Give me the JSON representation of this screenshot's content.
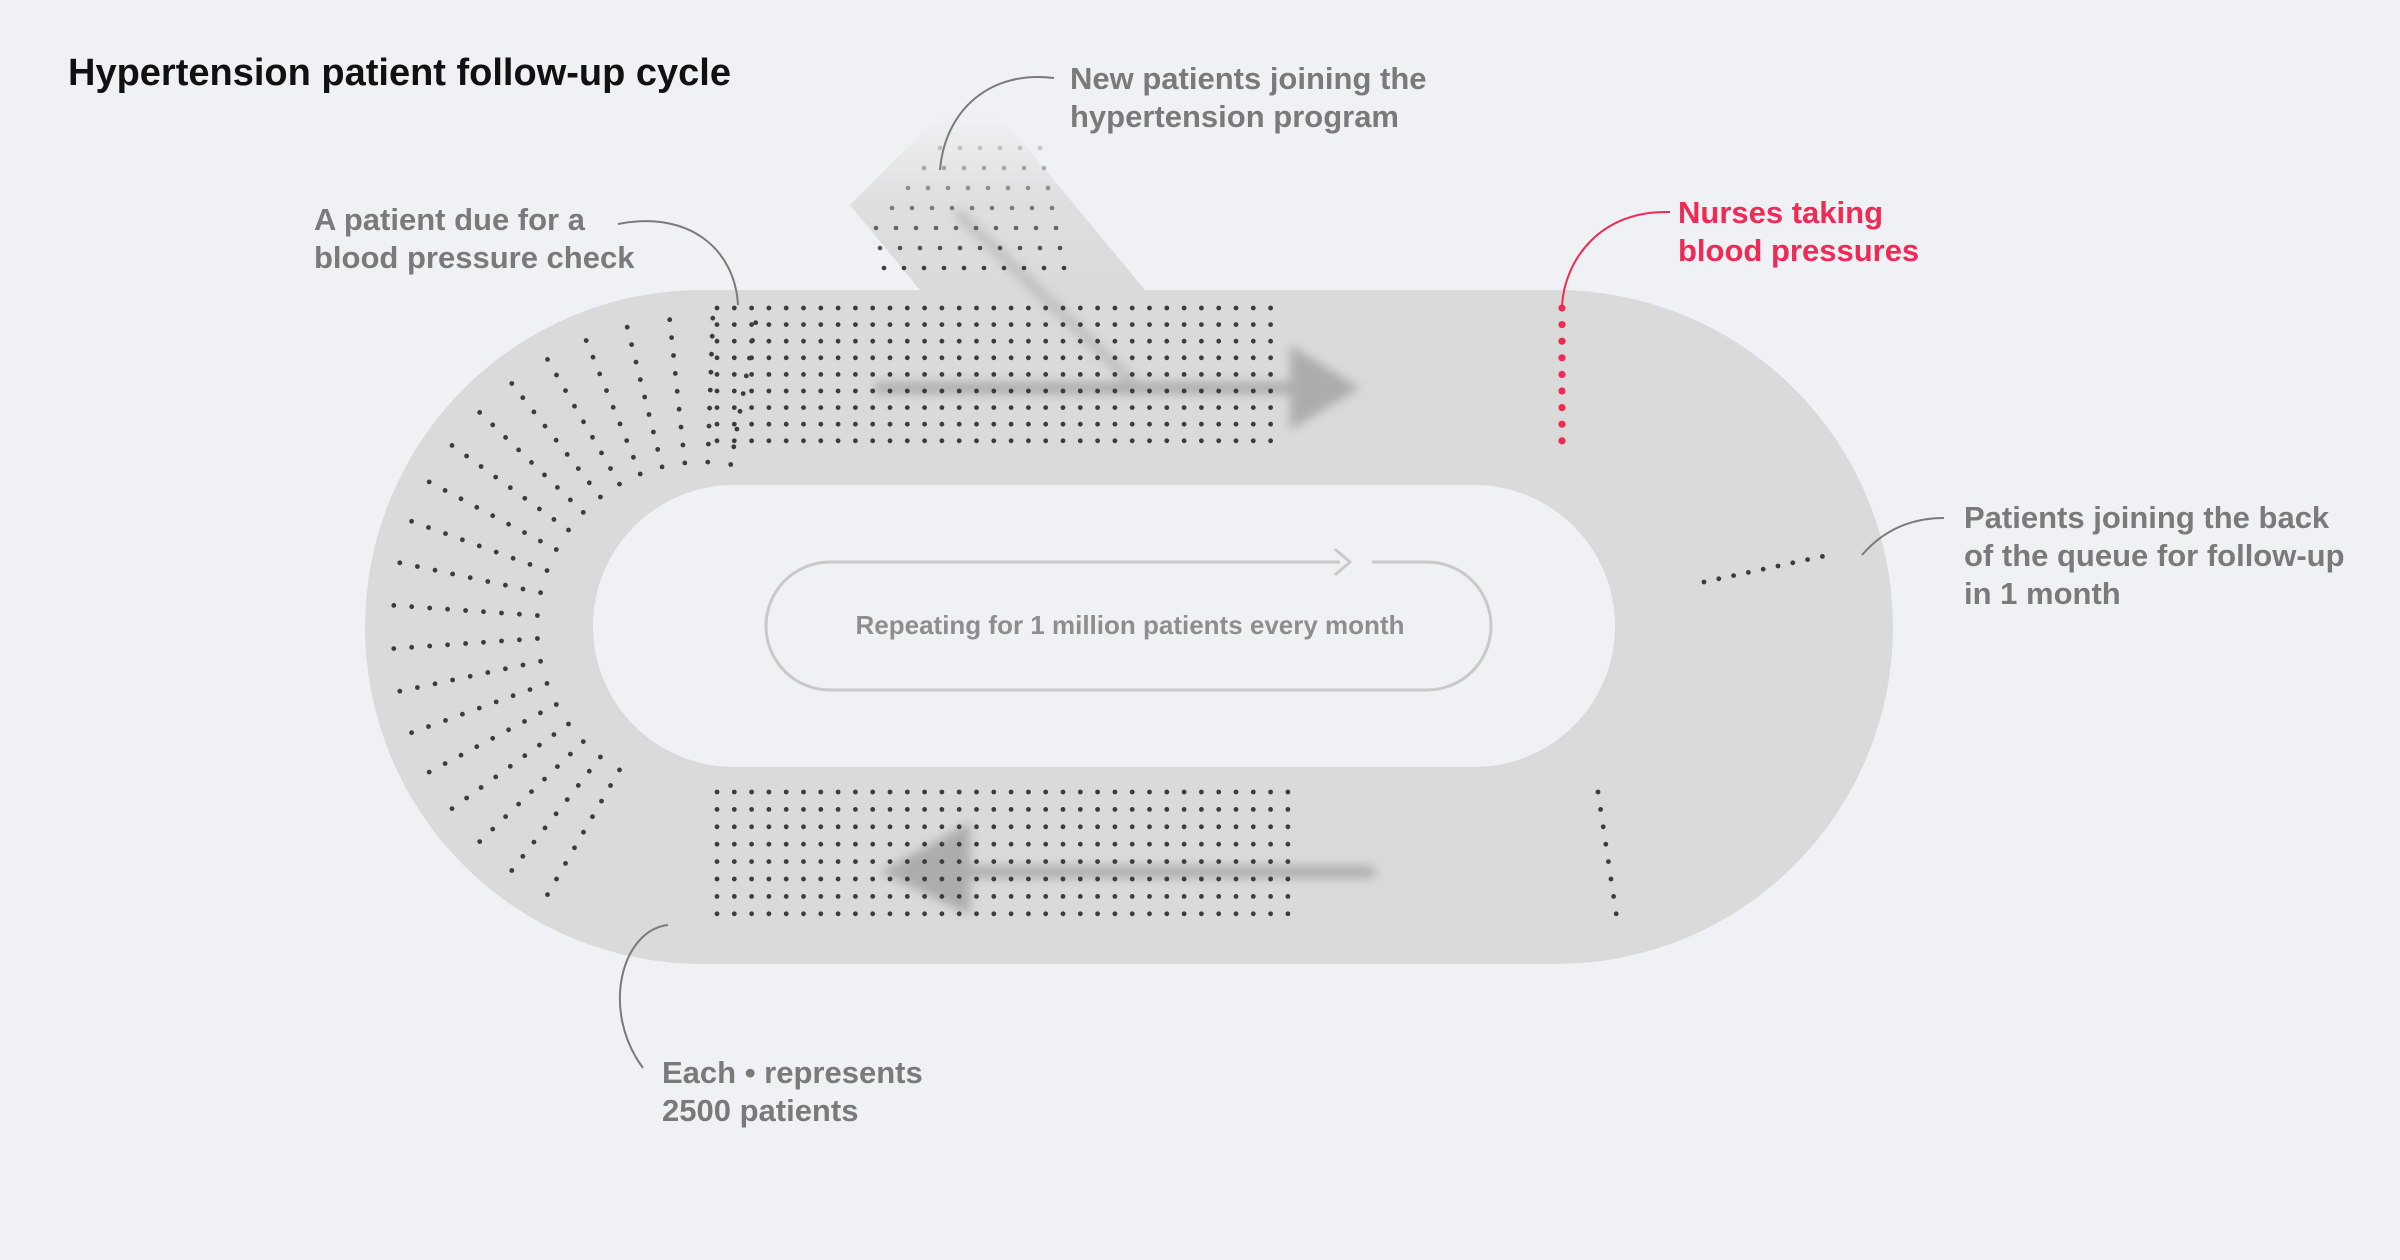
{
  "title": "Hypertension patient follow-up cycle",
  "callouts": {
    "new_patients": [
      "New patients joining the",
      "hypertension program"
    ],
    "patient_due": [
      "A patient due for a",
      "blood pressure check"
    ],
    "nurses": [
      "Nurses taking",
      "blood pressures"
    ],
    "queue_back": [
      "Patients joining the back",
      "of the queue for follow-up",
      "in 1 month"
    ],
    "each_dot": [
      "Each • represents",
      "2500 patients"
    ]
  },
  "loop_label": "Repeating for 1 million patients every month",
  "colors": {
    "background": "#f0f1f4",
    "track": "#dadada",
    "dot": "#3c3c3c",
    "accent_red": "#ee2a55",
    "callout_text": "#7a7a7a",
    "arrow": "#b4b4b4"
  }
}
